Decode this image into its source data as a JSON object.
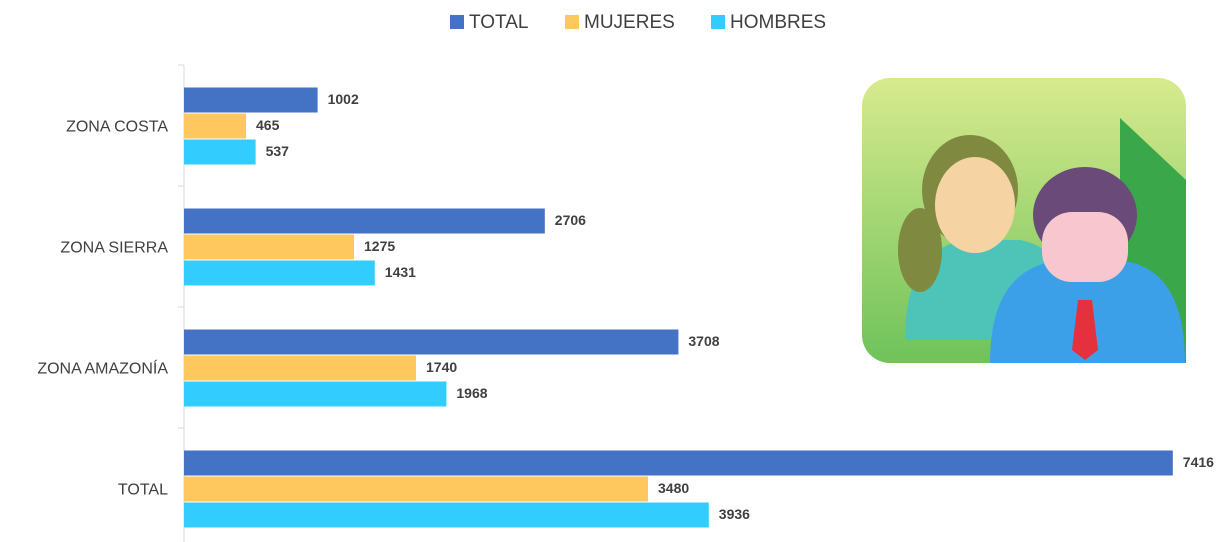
{
  "chart_data": {
    "type": "hbar",
    "categories": [
      "ZONA COSTA",
      "ZONA SIERRA",
      "ZONA AMAZONÍA",
      "TOTAL"
    ],
    "series": [
      {
        "name": "TOTAL",
        "color": "#4472c4",
        "values": [
          1002,
          2706,
          3708,
          7416
        ]
      },
      {
        "name": "MUJERES",
        "color": "#ffc85f",
        "values": [
          465,
          1275,
          1740,
          3480
        ]
      },
      {
        "name": "HOMBRES",
        "color": "#33ccff",
        "values": [
          537,
          1431,
          1968,
          3936
        ]
      }
    ],
    "xlim": [
      0,
      7500
    ],
    "legend": "top"
  }
}
